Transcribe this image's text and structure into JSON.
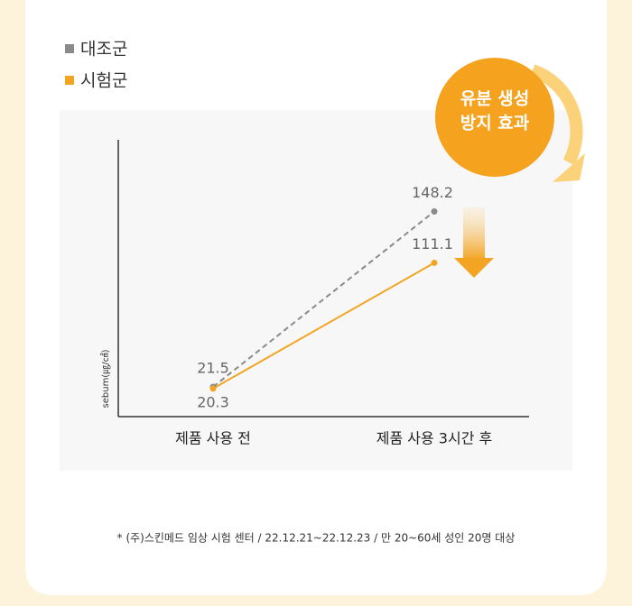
{
  "chart_data": {
    "type": "line",
    "badge": [
      "유분 생성",
      "방지 효과"
    ],
    "y_label": "sebum(㎍/㎠)",
    "categories": [
      "제품 사용 전",
      "제품 사용 3시간 후"
    ],
    "series": [
      {
        "name": "대조군",
        "color": "#8a8a8a",
        "line_style": "dashed",
        "values": [
          21.5,
          148.2
        ]
      },
      {
        "name": "시험군",
        "color": "#f2a422",
        "line_style": "solid",
        "values": [
          20.3,
          111.1
        ]
      }
    ],
    "ylim": [
      0,
      200
    ],
    "footnote": "* (주)스킨메드 임상 시험 센터 / 22.12.21~22.12.23 / 만 20~60세 성인 20명 대상"
  }
}
